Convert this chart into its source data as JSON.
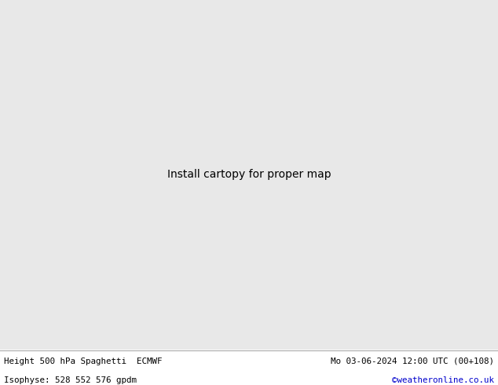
{
  "title_left": "Height 500 hPa Spaghetti  ECMWF",
  "title_right": "Mo 03-06-2024 12:00 UTC (00+108)",
  "subtitle_left": "Isophyse: 528 552 576 gpdm",
  "subtitle_right": "©weatheronline.co.uk",
  "subtitle_right_color": "#0000cc",
  "bg_color": "#e8e8e8",
  "land_color_green": "#c8f0a8",
  "land_color_gray": "#c8c8c8",
  "ocean_color": "#e8e8e8",
  "border_color": "#888888",
  "figsize": [
    6.34,
    4.9
  ],
  "dpi": 100,
  "extent": [
    60,
    200,
    -15,
    65
  ],
  "line_colors": [
    "#404040",
    "#ff00ff",
    "#00ccff",
    "#ff8800",
    "#ff0000",
    "#00cc00",
    "#8800aa",
    "#ff6600",
    "#00eeee",
    "#cccc00",
    "#202020",
    "#dd00dd",
    "#0088ff",
    "#ffaa00",
    "#cc0000",
    "#006600",
    "#660099",
    "#ff4400",
    "#00bbbb",
    "#888800",
    "#505050",
    "#ee00ee",
    "#0066cc",
    "#ffcc33",
    "#dd2200",
    "#303030",
    "#aa00aa",
    "#44aaff",
    "#ee9900",
    "#bb0000",
    "#009900",
    "#440077",
    "#ff5500",
    "#00cccc",
    "#999900",
    "#606060",
    "#ff44ff",
    "#0044cc",
    "#ffbb22",
    "#ee1100",
    "#004400",
    "#550088",
    "#ff3300",
    "#00aaaa",
    "#777700",
    "#707070",
    "#ee22ee",
    "#0055dd",
    "#ffcc00",
    "#cc1100"
  ]
}
